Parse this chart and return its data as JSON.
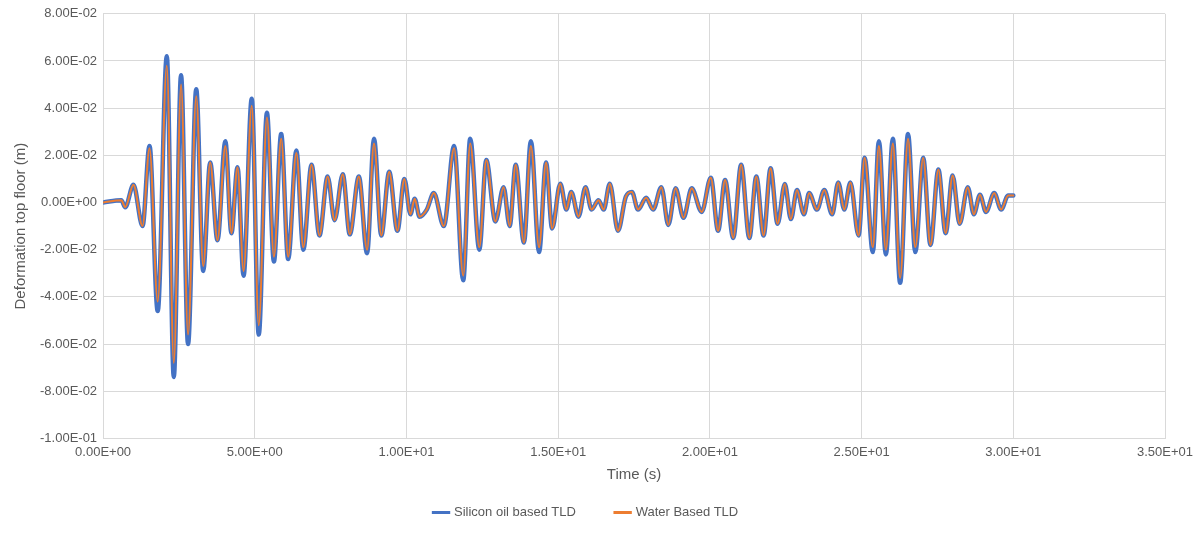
{
  "chart_data": {
    "type": "line",
    "xlabel": "Time (s)",
    "ylabel": "Deformation top floor (m)",
    "x": [
      0,
      0.6,
      0.73,
      1.0,
      1.3,
      1.53,
      1.8,
      2.1,
      2.33,
      2.57,
      2.8,
      3.07,
      3.3,
      3.53,
      3.77,
      4.03,
      4.23,
      4.43,
      4.63,
      4.9,
      5.13,
      5.4,
      5.63,
      5.87,
      6.1,
      6.37,
      6.6,
      6.87,
      7.13,
      7.4,
      7.63,
      7.9,
      8.13,
      8.43,
      8.7,
      8.93,
      9.17,
      9.43,
      9.7,
      9.93,
      10.13,
      10.27,
      10.43,
      10.67,
      10.9,
      11.23,
      11.57,
      11.87,
      12.1,
      12.4,
      12.63,
      12.93,
      13.2,
      13.4,
      13.6,
      13.87,
      14.1,
      14.37,
      14.6,
      14.8,
      15.07,
      15.27,
      15.43,
      15.67,
      15.9,
      16.1,
      16.33,
      16.5,
      16.7,
      16.97,
      17.23,
      17.43,
      17.63,
      17.9,
      18.13,
      18.4,
      18.63,
      18.87,
      19.13,
      19.4,
      19.73,
      20.03,
      20.27,
      20.5,
      20.77,
      21.03,
      21.3,
      21.53,
      21.77,
      22.0,
      22.23,
      22.47,
      22.67,
      22.87,
      23.1,
      23.27,
      23.53,
      23.77,
      24.03,
      24.23,
      24.43,
      24.63,
      24.9,
      25.1,
      25.37,
      25.57,
      25.8,
      26.03,
      26.27,
      26.53,
      26.77,
      27.03,
      27.27,
      27.53,
      27.77,
      28.0,
      28.23,
      28.5,
      28.7,
      28.9,
      29.1,
      29.37,
      29.6,
      29.83,
      30.0
    ],
    "series": [
      {
        "name": "Silicon oil based TLD",
        "color": "#4472c4",
        "values": [
          0,
          0.001,
          -0.002,
          0.0075,
          -0.01,
          0.024,
          -0.046,
          0.062,
          -0.074,
          0.054,
          -0.06,
          0.048,
          -0.029,
          0.017,
          -0.016,
          0.026,
          -0.013,
          0.015,
          -0.031,
          0.044,
          -0.056,
          0.038,
          -0.025,
          0.029,
          -0.024,
          0.022,
          -0.02,
          0.016,
          -0.014,
          0.011,
          -0.0075,
          0.012,
          -0.0135,
          0.011,
          -0.0215,
          0.027,
          -0.014,
          0.013,
          -0.012,
          0.01,
          -0.005,
          0.0016,
          -0.006,
          -0.003,
          0.004,
          -0.01,
          0.024,
          -0.033,
          0.027,
          -0.02,
          0.018,
          -0.008,
          0.0065,
          -0.01,
          0.016,
          -0.017,
          0.026,
          -0.021,
          0.017,
          -0.011,
          0.008,
          -0.003,
          0.0045,
          -0.006,
          0.0065,
          -0.003,
          0.001,
          -0.003,
          0.008,
          -0.012,
          0.0025,
          0.0045,
          -0.003,
          0.002,
          -0.003,
          0.0065,
          -0.0095,
          0.006,
          -0.0065,
          0.006,
          -0.004,
          0.0105,
          -0.012,
          0.0095,
          -0.015,
          0.016,
          -0.015,
          0.011,
          -0.014,
          0.0145,
          -0.009,
          0.0078,
          -0.007,
          0.0053,
          -0.005,
          0.004,
          -0.003,
          0.0053,
          -0.005,
          0.0085,
          -0.003,
          0.0085,
          -0.014,
          0.019,
          -0.021,
          0.026,
          -0.022,
          0.027,
          -0.034,
          0.029,
          -0.021,
          0.019,
          -0.018,
          0.014,
          -0.013,
          0.0115,
          -0.009,
          0.0065,
          -0.005,
          0.0033,
          -0.004,
          0.004,
          -0.003,
          0.003,
          0.003
        ]
      },
      {
        "name": "Water Based TLD",
        "color": "#ed7d31",
        "values": [
          0,
          0.001,
          -0.002,
          0.0075,
          -0.01,
          0.023,
          -0.042,
          0.058,
          -0.068,
          0.05,
          -0.056,
          0.045,
          -0.027,
          0.017,
          -0.016,
          0.024,
          -0.013,
          0.015,
          -0.029,
          0.041,
          -0.052,
          0.036,
          -0.023,
          0.027,
          -0.023,
          0.021,
          -0.019,
          0.016,
          -0.014,
          0.011,
          -0.0075,
          0.012,
          -0.0135,
          0.011,
          -0.02,
          0.025,
          -0.014,
          0.013,
          -0.012,
          0.01,
          -0.005,
          0.0016,
          -0.006,
          -0.003,
          0.004,
          -0.01,
          0.023,
          -0.031,
          0.025,
          -0.019,
          0.018,
          -0.008,
          0.0065,
          -0.01,
          0.016,
          -0.017,
          0.024,
          -0.019,
          0.017,
          -0.011,
          0.008,
          -0.003,
          0.0045,
          -0.006,
          0.0065,
          -0.003,
          0.001,
          -0.003,
          0.008,
          -0.012,
          0.0025,
          0.0045,
          -0.003,
          0.002,
          -0.003,
          0.0065,
          -0.0095,
          0.006,
          -0.0065,
          0.006,
          -0.004,
          0.0105,
          -0.012,
          0.0095,
          -0.015,
          0.016,
          -0.015,
          0.011,
          -0.014,
          0.0145,
          -0.009,
          0.0078,
          -0.007,
          0.0053,
          -0.005,
          0.004,
          -0.003,
          0.0053,
          -0.005,
          0.0085,
          -0.003,
          0.0085,
          -0.014,
          0.019,
          -0.019,
          0.024,
          -0.02,
          0.025,
          -0.032,
          0.027,
          -0.019,
          0.019,
          -0.018,
          0.014,
          -0.013,
          0.0115,
          -0.009,
          0.0065,
          -0.005,
          0.0033,
          -0.004,
          0.004,
          -0.003,
          0.003,
          0.003
        ]
      }
    ],
    "xlim": [
      0,
      35
    ],
    "xticks": [
      {
        "value": 0,
        "label": "0.00E+00"
      },
      {
        "value": 5,
        "label": "5.00E+00"
      },
      {
        "value": 10,
        "label": "1.00E+01"
      },
      {
        "value": 15,
        "label": "1.50E+01"
      },
      {
        "value": 20,
        "label": "2.00E+01"
      },
      {
        "value": 25,
        "label": "2.50E+01"
      },
      {
        "value": 30,
        "label": "3.00E+01"
      },
      {
        "value": 35,
        "label": "3.50E+01"
      }
    ],
    "ylim": [
      -0.1,
      0.08
    ],
    "yticks": [
      {
        "value": -0.1,
        "label": "-1.00E-01"
      },
      {
        "value": -0.08,
        "label": "-8.00E-02"
      },
      {
        "value": -0.06,
        "label": "-6.00E-02"
      },
      {
        "value": -0.04,
        "label": "-4.00E-02"
      },
      {
        "value": -0.02,
        "label": "-2.00E-02"
      },
      {
        "value": 0,
        "label": "0.00E+00"
      },
      {
        "value": 0.02,
        "label": "2.00E-02"
      },
      {
        "value": 0.04,
        "label": "4.00E-02"
      },
      {
        "value": 0.06,
        "label": "6.00E-02"
      },
      {
        "value": 0.08,
        "label": "8.00E-02"
      }
    ],
    "grid": true,
    "legend": "bottom",
    "marker": "none",
    "line_style": "solid"
  }
}
